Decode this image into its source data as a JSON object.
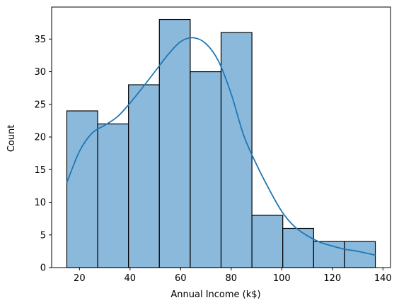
{
  "chart_data": {
    "type": "bar",
    "subtype": "histogram-with-kde",
    "title": "",
    "xlabel": "Annual Income (k$)",
    "ylabel": "Count",
    "xlim": [
      9,
      143
    ],
    "ylim": [
      0,
      39.9
    ],
    "xticks": [
      20,
      40,
      60,
      80,
      100,
      120,
      140
    ],
    "yticks": [
      0,
      5,
      10,
      15,
      20,
      25,
      30,
      35
    ],
    "grid": false,
    "legend": "none",
    "bins": [
      {
        "start": 15.0,
        "end": 27.2,
        "count": 24
      },
      {
        "start": 27.2,
        "end": 39.4,
        "count": 22
      },
      {
        "start": 39.4,
        "end": 51.6,
        "count": 28
      },
      {
        "start": 51.6,
        "end": 63.8,
        "count": 38
      },
      {
        "start": 63.8,
        "end": 76.0,
        "count": 30
      },
      {
        "start": 76.0,
        "end": 88.2,
        "count": 36
      },
      {
        "start": 88.2,
        "end": 100.4,
        "count": 8
      },
      {
        "start": 100.4,
        "end": 112.6,
        "count": 6
      },
      {
        "start": 112.6,
        "end": 124.8,
        "count": 4
      },
      {
        "start": 124.8,
        "end": 137.0,
        "count": 4
      }
    ],
    "kde": {
      "x": [
        15,
        20,
        25,
        30,
        35,
        40,
        45,
        50,
        55,
        60,
        65,
        70,
        75,
        80,
        85,
        90,
        95,
        100,
        105,
        110,
        115,
        120,
        125,
        130,
        137
      ],
      "y": [
        13,
        17.8,
        20.6,
        21.8,
        23.1,
        25.2,
        27.6,
        30.1,
        32.6,
        34.6,
        35.2,
        34.3,
        31.6,
        26.6,
        20.2,
        15.8,
        12.0,
        8.6,
        6.3,
        4.9,
        3.9,
        3.3,
        2.8,
        2.5,
        1.9
      ]
    },
    "colors": {
      "bar_fill": "#8bb9dc",
      "bar_edge": "#000000",
      "kde_line": "#1f77b4"
    }
  }
}
